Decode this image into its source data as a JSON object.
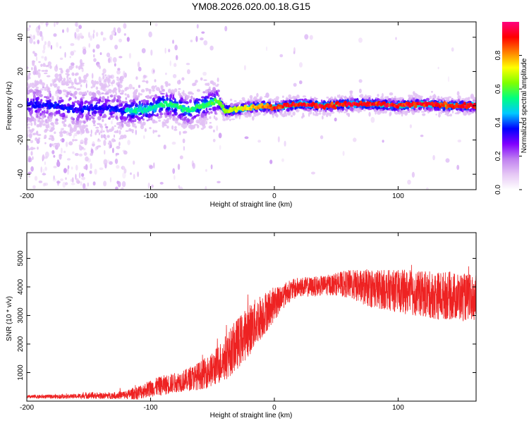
{
  "chart_data": [
    {
      "type": "heatmap",
      "title": "YM08.2026.020.00.18.G15",
      "xlabel": "Height of straight line (km)",
      "ylabel": "Frequency (Hz)",
      "xlim": [
        -200,
        163
      ],
      "ylim": [
        -49,
        49
      ],
      "x_ticks": [
        -200,
        -100,
        0,
        100
      ],
      "y_ticks": [
        40,
        20,
        0,
        -20,
        -40
      ],
      "colorbar": {
        "label": "Normalized spectral amplitude",
        "range": [
          0,
          1
        ],
        "ticks": [
          "0.0",
          "0.2",
          "0.4",
          "0.6",
          "0.8"
        ],
        "colors": [
          "#ffffff",
          "#e6c8f5",
          "#c080f0",
          "#8000ff",
          "#0000ff",
          "#00c8ff",
          "#00ff80",
          "#80ff00",
          "#ffff00",
          "#ff8000",
          "#ff0000",
          "#ff0080"
        ]
      },
      "ridge": {
        "x": [
          -200,
          -180,
          -160,
          -140,
          -120,
          -100,
          -90,
          -80,
          -70,
          -60,
          -50,
          -45,
          -40,
          -30,
          -20,
          -10,
          0,
          20,
          40,
          60,
          80,
          100,
          120,
          140,
          163
        ],
        "y": [
          1,
          0,
          -2,
          -1,
          -3,
          -2,
          1,
          0,
          -3,
          0,
          2,
          3,
          -3,
          -2,
          -1,
          0,
          -1,
          1,
          0,
          1,
          1,
          0,
          1,
          0,
          0
        ]
      }
    },
    {
      "type": "line",
      "xlabel": "Height of straight line (km)",
      "ylabel": "SNR (10 * v/v)",
      "xlim": [
        -200,
        163
      ],
      "ylim": [
        0,
        5900
      ],
      "x_ticks": [
        -200,
        -100,
        0,
        100
      ],
      "y_ticks": [
        1000,
        2000,
        3000,
        4000,
        5000
      ],
      "series": [
        {
          "name": "SNR",
          "color": "#ee2222",
          "x": [
            -200,
            -180,
            -160,
            -150,
            -140,
            -120,
            -110,
            -100,
            -90,
            -80,
            -70,
            -60,
            -50,
            -40,
            -30,
            -20,
            -10,
            0,
            10,
            20,
            30,
            40,
            50,
            60,
            70,
            80,
            90,
            100,
            110,
            120,
            130,
            140,
            150,
            163
          ],
          "mean": [
            150,
            160,
            170,
            200,
            180,
            220,
            300,
            450,
            550,
            650,
            750,
            900,
            1100,
            1500,
            2000,
            2500,
            3000,
            3400,
            3800,
            4000,
            4000,
            4050,
            4100,
            4100,
            4000,
            3950,
            3900,
            3850,
            3800,
            3750,
            3700,
            3700,
            3650,
            3600
          ],
          "spread": [
            60,
            70,
            80,
            120,
            100,
            150,
            250,
            300,
            350,
            350,
            400,
            500,
            600,
            800,
            900,
            900,
            800,
            600,
            400,
            350,
            350,
            350,
            400,
            500,
            600,
            700,
            700,
            750,
            800,
            800,
            850,
            850,
            850,
            800
          ]
        }
      ]
    }
  ]
}
